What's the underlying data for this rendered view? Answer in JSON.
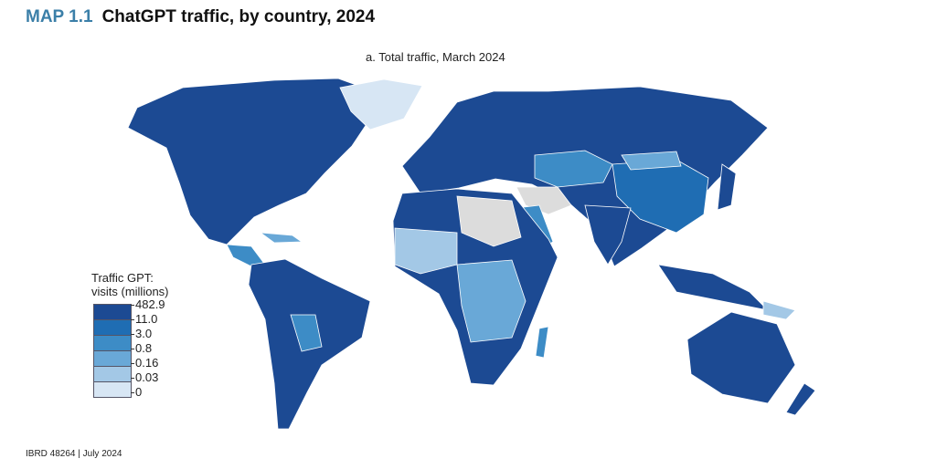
{
  "header": {
    "map_number": "MAP 1.1",
    "title": "ChatGPT traffic, by country, 2024"
  },
  "subtitle": "a. Total traffic, March 2024",
  "legend": {
    "title_line1": "Traffic GPT:",
    "title_line2": "visits (millions)",
    "breaks": [
      "482.9",
      "11.0",
      "3.0",
      "0.8",
      "0.16",
      "0.03",
      "0"
    ],
    "colors": [
      "#1c4a93",
      "#1f6db3",
      "#3d8cc6",
      "#69a8d7",
      "#a3c8e6",
      "#d7e6f4"
    ],
    "no_data_color": "#dcdcdc"
  },
  "footer": "IBRD 48264 | July 2024"
}
